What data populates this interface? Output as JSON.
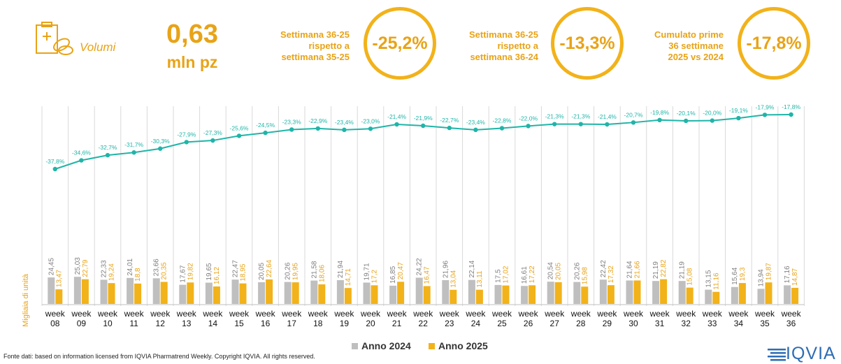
{
  "header": {
    "label": "Volumi",
    "value": "0,63",
    "unit": "mln pz",
    "kpis": [
      {
        "line1": "Settimana 36-25",
        "line2": "rispetto a",
        "line3": "settimana 35-25",
        "value": "-25,2%"
      },
      {
        "line1": "Settimana 36-25",
        "line2": "rispetto a",
        "line3": "settimana 36-24",
        "value": "-13,3%"
      },
      {
        "line1": "Cumulato prime",
        "line2": "36 settimane",
        "line3": "2025 vs 2024",
        "value": "-17,8%"
      }
    ]
  },
  "footer": {
    "source": "Fonte dati: based on information licensed from IQVIA Pharmatrend Weekly. Copyright IQVIA. All rights reserved.",
    "brand": "IQVIA"
  },
  "chart_data": {
    "type": "bar",
    "ylabel": "Migliaia di unità",
    "categories": [
      "week 08",
      "week 09",
      "week 10",
      "week 11",
      "week 12",
      "week 13",
      "week 14",
      "week 15",
      "week 16",
      "week 17",
      "week 18",
      "week 19",
      "week 20",
      "week 21",
      "week 22",
      "week 23",
      "week 24",
      "week 25",
      "week 26",
      "week 27",
      "week 28",
      "week 29",
      "week 30",
      "week 31",
      "week 32",
      "week 33",
      "week 34",
      "week 35",
      "week 36"
    ],
    "series": [
      {
        "name": "Anno 2024",
        "color": "#BFBFBF",
        "values": [
          24.45,
          25.03,
          22.33,
          24.01,
          23.66,
          17.67,
          19.65,
          22.47,
          20.05,
          20.26,
          21.58,
          21.94,
          19.71,
          16.85,
          24.22,
          21.96,
          22.14,
          17.5,
          16.61,
          20.54,
          20.26,
          22.42,
          21.64,
          21.19,
          21.19,
          13.15,
          15.64,
          13.94,
          17.16
        ]
      },
      {
        "name": "Anno 2025",
        "color": "#F2B21A",
        "values": [
          13.47,
          22.79,
          19.24,
          18.8,
          20.35,
          19.82,
          16.12,
          18.95,
          22.64,
          19.95,
          18.06,
          14.71,
          17.2,
          20.47,
          16.47,
          13.04,
          13.11,
          17.02,
          17.22,
          20.05,
          15.98,
          17.32,
          21.66,
          22.82,
          15.08,
          11.16,
          19.3,
          19.87,
          14.87
        ]
      }
    ],
    "labels_2024": [
      "24,45",
      "25,03",
      "22,33",
      "24,01",
      "23,66",
      "17,67",
      "19,65",
      "22,47",
      "20,05",
      "20,26",
      "21,58",
      "21,94",
      "19,71",
      "16,85",
      "24,22",
      "21,96",
      "22,14",
      "17,5",
      "16,61",
      "20,54",
      "20,26",
      "22,42",
      "21,64",
      "21,19",
      "21,19",
      "13,15",
      "15,64",
      "13,94",
      "17,16"
    ],
    "labels_2025": [
      "13,47",
      "22,79",
      "19,24",
      "18,8",
      "20,35",
      "19,82",
      "16,12",
      "18,95",
      "22,64",
      "19,95",
      "18,06",
      "14,71",
      "17,2",
      "20,47",
      "16,47",
      "13,04",
      "13,11",
      "17,02",
      "17,22",
      "20,05",
      "15,98",
      "17,32",
      "21,66",
      "22,82",
      "15,08",
      "11,16",
      "19,3",
      "19,87",
      "14,87"
    ],
    "cumulative_line": {
      "color": "#1FB5A8",
      "values": [
        -37.8,
        -34.6,
        -32.7,
        -31.7,
        -30.3,
        -27.9,
        -27.3,
        -25.6,
        -24.5,
        -23.3,
        -22.9,
        -23.4,
        -23.0,
        -21.4,
        -21.9,
        -22.7,
        -23.4,
        -22.8,
        -22.0,
        -21.3,
        -21.3,
        -21.4,
        -20.7,
        -19.8,
        -20.1,
        -20.0,
        -19.1,
        -17.9,
        -17.8
      ],
      "labels": [
        "-37,8%",
        "-34,6%",
        "-32,7%",
        "-31,7%",
        "-30,3%",
        "-27,9%",
        "-27,3%",
        "-25,6%",
        "-24,5%",
        "-23,3%",
        "-22,9%",
        "-23,4%",
        "-23,0%",
        "-21,4%",
        "-21,9%",
        "-22,7%",
        "-23,4%",
        "-22,8%",
        "-22,0%",
        "-21,3%",
        "-21,3%",
        "-21,4%",
        "-20,7%",
        "-19,8%",
        "-20,1%",
        "-20,0%",
        "-19,1%",
        "-17,9%",
        "-17,8%"
      ]
    }
  }
}
